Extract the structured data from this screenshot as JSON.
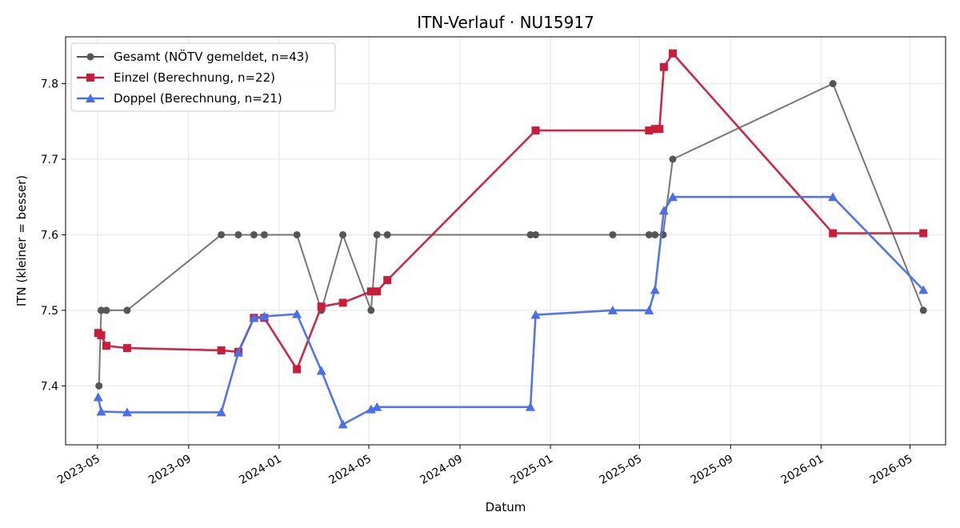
{
  "chart_data": {
    "type": "line",
    "title": "ITN-Verlauf · NU15917",
    "xlabel": "Datum",
    "ylabel": "ITN  (kleiner = besser)",
    "x_axis": {
      "kind": "date",
      "range": [
        "2023-03-19",
        "2026-06-18"
      ],
      "ticks": [
        "2023-05",
        "2023-09",
        "2024-01",
        "2024-05",
        "2024-09",
        "2025-01",
        "2025-05",
        "2025-09",
        "2026-01",
        "2026-05"
      ]
    },
    "y_axis": {
      "range": [
        7.322,
        7.862
      ],
      "ticks": [
        "7.4",
        "7.5",
        "7.6",
        "7.7",
        "7.8"
      ]
    },
    "grid": true,
    "legend_position": "top-left",
    "series": [
      {
        "name": "Gesamt (NÖTV gemeldet, n=43)",
        "color": "#555555",
        "marker": "circle",
        "points": [
          [
            "2023-05-03",
            7.4
          ],
          [
            "2023-05-06",
            7.5
          ],
          [
            "2023-05-13",
            7.5
          ],
          [
            "2023-06-10",
            7.5
          ],
          [
            "2023-10-15",
            7.6
          ],
          [
            "2023-11-07",
            7.6
          ],
          [
            "2023-11-28",
            7.6
          ],
          [
            "2023-12-12",
            7.6
          ],
          [
            "2024-01-25",
            7.6
          ],
          [
            "2024-02-27",
            7.5
          ],
          [
            "2024-03-27",
            7.6
          ],
          [
            "2024-05-04",
            7.5
          ],
          [
            "2024-05-12",
            7.6
          ],
          [
            "2024-05-26",
            7.6
          ],
          [
            "2024-12-05",
            7.6
          ],
          [
            "2024-12-12",
            7.6
          ],
          [
            "2025-03-26",
            7.6
          ],
          [
            "2025-05-14",
            7.6
          ],
          [
            "2025-05-22",
            7.6
          ],
          [
            "2025-06-02",
            7.6
          ],
          [
            "2025-06-15",
            7.7
          ],
          [
            "2026-01-17",
            7.8
          ],
          [
            "2026-05-19",
            7.5
          ]
        ]
      },
      {
        "name": "Einzel (Berechnung, n=22)",
        "color": "#c81e3c",
        "marker": "square",
        "points": [
          [
            "2023-05-02",
            7.47
          ],
          [
            "2023-05-06",
            7.467
          ],
          [
            "2023-05-13",
            7.453
          ],
          [
            "2023-06-10",
            7.45
          ],
          [
            "2023-10-15",
            7.447
          ],
          [
            "2023-11-07",
            7.445
          ],
          [
            "2023-11-28",
            7.49
          ],
          [
            "2023-12-12",
            7.49
          ],
          [
            "2024-01-25",
            7.422
          ],
          [
            "2024-02-27",
            7.505
          ],
          [
            "2024-03-27",
            7.51
          ],
          [
            "2024-05-04",
            7.525
          ],
          [
            "2024-05-12",
            7.525
          ],
          [
            "2024-05-26",
            7.54
          ],
          [
            "2024-12-12",
            7.738
          ],
          [
            "2025-05-14",
            7.738
          ],
          [
            "2025-05-22",
            7.74
          ],
          [
            "2025-05-28",
            7.74
          ],
          [
            "2025-06-03",
            7.822
          ],
          [
            "2025-06-15",
            7.84
          ],
          [
            "2026-01-17",
            7.602
          ],
          [
            "2026-05-19",
            7.602
          ]
        ]
      },
      {
        "name": "Doppel (Berechnung, n=21)",
        "color": "#4a6ee8",
        "marker": "triangle",
        "points": [
          [
            "2023-05-02",
            7.385
          ],
          [
            "2023-05-06",
            7.366
          ],
          [
            "2023-06-10",
            7.365
          ],
          [
            "2023-10-15",
            7.365
          ],
          [
            "2023-11-07",
            7.444
          ],
          [
            "2023-11-28",
            7.49
          ],
          [
            "2023-12-12",
            7.492
          ],
          [
            "2024-01-25",
            7.495
          ],
          [
            "2024-02-27",
            7.42
          ],
          [
            "2024-03-27",
            7.349
          ],
          [
            "2024-05-04",
            7.369
          ],
          [
            "2024-05-12",
            7.372
          ],
          [
            "2024-12-05",
            7.372
          ],
          [
            "2024-12-12",
            7.494
          ],
          [
            "2025-03-26",
            7.5
          ],
          [
            "2025-05-14",
            7.5
          ],
          [
            "2025-05-22",
            7.527
          ],
          [
            "2025-06-03",
            7.632
          ],
          [
            "2025-06-15",
            7.65
          ],
          [
            "2026-01-17",
            7.65
          ],
          [
            "2026-05-19",
            7.527
          ]
        ]
      }
    ]
  }
}
